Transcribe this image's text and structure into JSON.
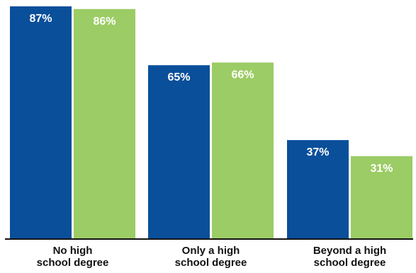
{
  "chart_data": {
    "type": "bar",
    "categories": [
      [
        "No high",
        "school degree"
      ],
      [
        "Only a high",
        "school degree"
      ],
      [
        "Beyond a high",
        "school degree"
      ]
    ],
    "series": [
      {
        "values": [
          87,
          65,
          37
        ],
        "labels": [
          "87%",
          "65%",
          "37%"
        ],
        "color": "#0a4f9a"
      },
      {
        "values": [
          86,
          66,
          31
        ],
        "labels": [
          "86%",
          "66%",
          "31%"
        ],
        "color": "#9ccc65"
      }
    ],
    "ylim": [
      0,
      87
    ],
    "grid": false,
    "legend": "none",
    "title": "",
    "xlabel": "",
    "ylabel": ""
  }
}
